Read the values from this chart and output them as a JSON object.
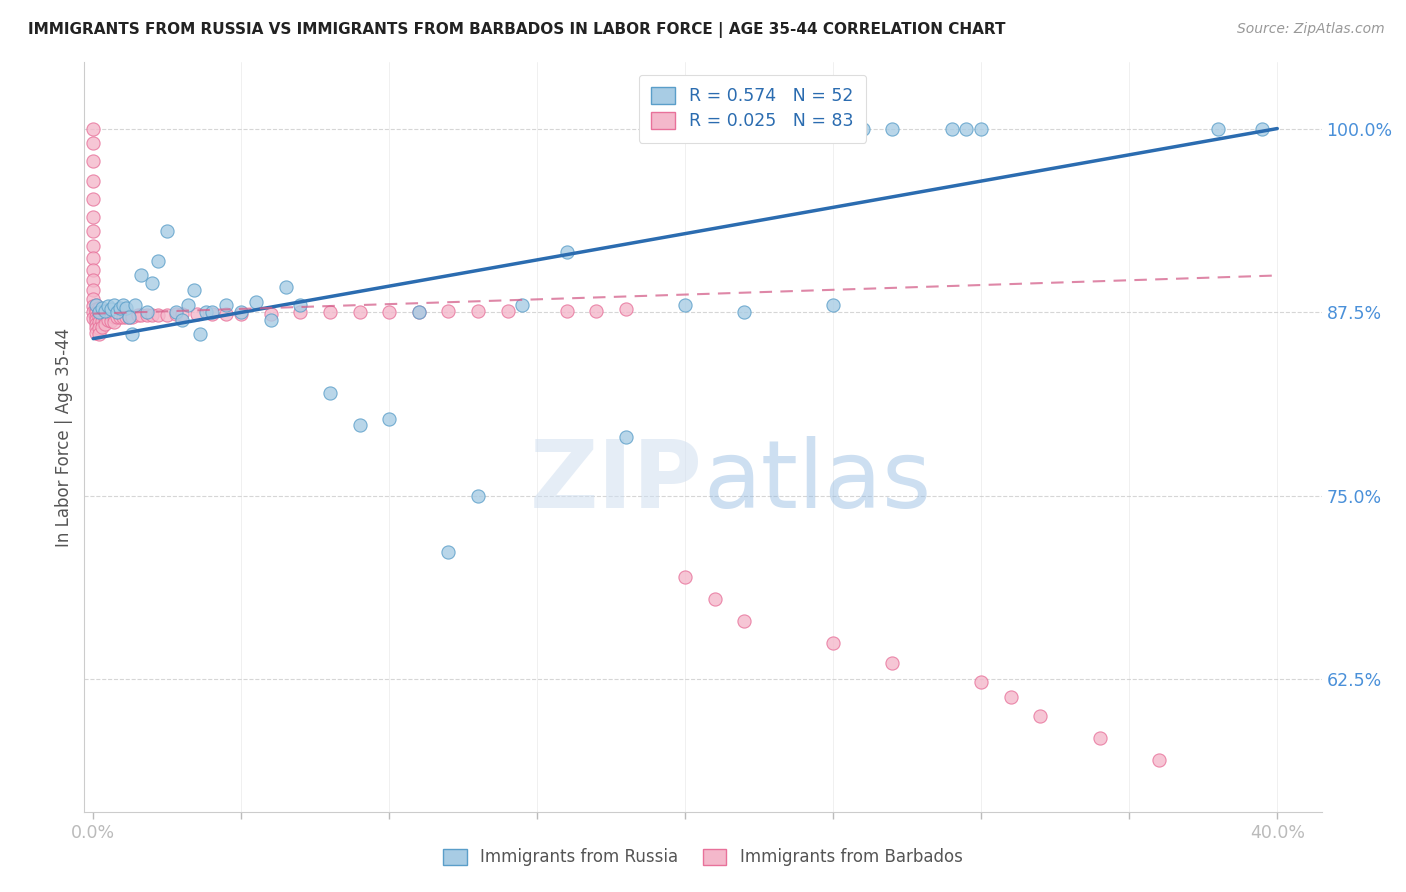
{
  "title": "IMMIGRANTS FROM RUSSIA VS IMMIGRANTS FROM BARBADOS IN LABOR FORCE | AGE 35-44 CORRELATION CHART",
  "source": "Source: ZipAtlas.com",
  "ylabel": "In Labor Force | Age 35-44",
  "xlim": [
    -0.003,
    0.415
  ],
  "ylim": [
    0.535,
    1.045
  ],
  "russia_color": "#a8cce4",
  "barbados_color": "#f4b8cb",
  "russia_edge": "#5a9ec9",
  "barbados_edge": "#e8719a",
  "trend_russia_color": "#2b6cb0",
  "trend_barbados_color": "#d45f8a",
  "R_russia": 0.574,
  "N_russia": 52,
  "R_barbados": 0.025,
  "N_barbados": 83,
  "russia_x": [
    0.001,
    0.002,
    0.003,
    0.004,
    0.005,
    0.006,
    0.007,
    0.008,
    0.009,
    0.01,
    0.011,
    0.012,
    0.013,
    0.014,
    0.016,
    0.018,
    0.02,
    0.022,
    0.025,
    0.028,
    0.03,
    0.032,
    0.034,
    0.036,
    0.038,
    0.04,
    0.045,
    0.05,
    0.055,
    0.06,
    0.065,
    0.07,
    0.08,
    0.09,
    0.1,
    0.11,
    0.12,
    0.13,
    0.145,
    0.16,
    0.18,
    0.2,
    0.22,
    0.25,
    0.255,
    0.26,
    0.27,
    0.29,
    0.295,
    0.3,
    0.38,
    0.395
  ],
  "russia_y": [
    0.88,
    0.875,
    0.878,
    0.876,
    0.879,
    0.877,
    0.88,
    0.875,
    0.878,
    0.88,
    0.878,
    0.872,
    0.86,
    0.88,
    0.9,
    0.875,
    0.895,
    0.91,
    0.93,
    0.875,
    0.87,
    0.88,
    0.89,
    0.86,
    0.875,
    0.875,
    0.88,
    0.875,
    0.882,
    0.87,
    0.892,
    0.88,
    0.82,
    0.798,
    0.802,
    0.875,
    0.712,
    0.75,
    0.88,
    0.916,
    0.79,
    0.88,
    0.875,
    0.88,
    1.0,
    1.0,
    1.0,
    1.0,
    1.0,
    1.0,
    1.0,
    1.0
  ],
  "barbados_x": [
    0.0,
    0.0,
    0.0,
    0.0,
    0.0,
    0.0,
    0.0,
    0.0,
    0.0,
    0.0,
    0.0,
    0.0,
    0.0,
    0.0,
    0.0,
    0.0,
    0.001,
    0.001,
    0.001,
    0.001,
    0.001,
    0.001,
    0.001,
    0.001,
    0.002,
    0.002,
    0.002,
    0.002,
    0.002,
    0.002,
    0.003,
    0.003,
    0.003,
    0.003,
    0.004,
    0.004,
    0.004,
    0.005,
    0.005,
    0.006,
    0.006,
    0.007,
    0.007,
    0.008,
    0.009,
    0.01,
    0.011,
    0.012,
    0.013,
    0.015,
    0.016,
    0.018,
    0.02,
    0.022,
    0.025,
    0.028,
    0.03,
    0.035,
    0.04,
    0.045,
    0.05,
    0.06,
    0.07,
    0.08,
    0.09,
    0.1,
    0.11,
    0.12,
    0.13,
    0.14,
    0.16,
    0.17,
    0.18,
    0.2,
    0.21,
    0.22,
    0.25,
    0.27,
    0.3,
    0.31,
    0.32,
    0.34,
    0.36
  ],
  "barbados_y": [
    1.0,
    0.99,
    0.978,
    0.964,
    0.952,
    0.94,
    0.93,
    0.92,
    0.912,
    0.904,
    0.897,
    0.89,
    0.884,
    0.879,
    0.875,
    0.871,
    0.88,
    0.877,
    0.875,
    0.872,
    0.87,
    0.867,
    0.864,
    0.861,
    0.878,
    0.875,
    0.872,
    0.868,
    0.864,
    0.86,
    0.876,
    0.873,
    0.869,
    0.865,
    0.875,
    0.871,
    0.867,
    0.874,
    0.87,
    0.873,
    0.869,
    0.872,
    0.868,
    0.872,
    0.872,
    0.872,
    0.872,
    0.872,
    0.872,
    0.873,
    0.873,
    0.873,
    0.873,
    0.873,
    0.873,
    0.874,
    0.874,
    0.874,
    0.874,
    0.874,
    0.874,
    0.874,
    0.875,
    0.875,
    0.875,
    0.875,
    0.875,
    0.876,
    0.876,
    0.876,
    0.876,
    0.876,
    0.877,
    0.695,
    0.68,
    0.665,
    0.65,
    0.636,
    0.623,
    0.613,
    0.6,
    0.585,
    0.57
  ],
  "barbados_trend_x": [
    0.0,
    0.4
  ],
  "barbados_trend_y": [
    0.874,
    0.9
  ],
  "russia_trend_x": [
    0.0,
    0.4
  ],
  "russia_trend_y": [
    0.857,
    1.0
  ],
  "watermark_zip": "ZIP",
  "watermark_atlas": "atlas",
  "background_color": "#ffffff",
  "grid_color": "#cccccc",
  "y_ticks": [
    0.625,
    0.75,
    0.875,
    1.0
  ],
  "y_tick_labels": [
    "62.5%",
    "75.0%",
    "87.5%",
    "100.0%"
  ],
  "x_ticks": [
    0.0,
    0.05,
    0.1,
    0.15,
    0.2,
    0.25,
    0.3,
    0.35,
    0.4
  ],
  "x_tick_labels": [
    "0.0%",
    "",
    "",
    "",
    "",
    "",
    "",
    "",
    "40.0%"
  ]
}
